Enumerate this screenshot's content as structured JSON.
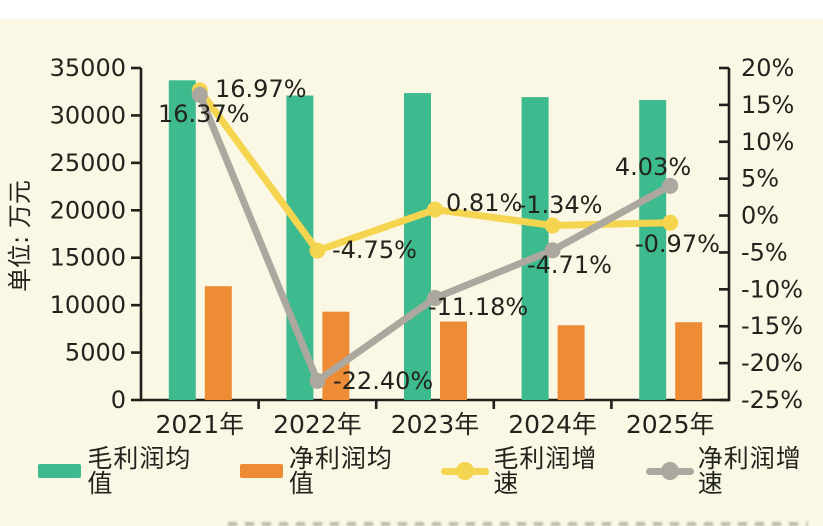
{
  "page": {
    "background_color": "#FAF8E4",
    "top_strip_color": "#FFFFFF",
    "text_color": "#23231E",
    "axis_color": "#1F1F1B"
  },
  "chart_data": {
    "type": "bar",
    "subtype": "combo-bar-line-dual-axis",
    "categories": [
      "2021年",
      "2022年",
      "2023年",
      "2024年",
      "2025年"
    ],
    "left_axis": {
      "title": "单位: 万元",
      "min": 0,
      "max": 35000,
      "tick_values": [
        35000,
        30000,
        25000,
        20000,
        15000,
        10000,
        5000,
        0
      ],
      "tick_labels": [
        "35000",
        "30000",
        "25000",
        "20000",
        "15000",
        "10000",
        "5000",
        "0"
      ]
    },
    "right_axis": {
      "min": -25,
      "max": 20,
      "tick_values": [
        20,
        15,
        10,
        5,
        0,
        -5,
        -10,
        -15,
        -20,
        -25
      ],
      "tick_labels": [
        "20%",
        "15%",
        "10%",
        "5%",
        "0%",
        "-5%",
        "-10%",
        "-15%",
        "-20%",
        "-25%"
      ]
    },
    "grid": false,
    "legend_position": "bottom",
    "series": [
      {
        "name": "毛利润均值",
        "type": "bar",
        "axis": "left",
        "color": "#3DBA8E",
        "values": [
          33700,
          32100,
          32360,
          31930,
          31620
        ]
      },
      {
        "name": "净利润均值",
        "type": "bar",
        "axis": "left",
        "color": "#EE8B35",
        "values": [
          12000,
          9310,
          8270,
          7880,
          8200
        ]
      },
      {
        "name": "毛利润增速",
        "type": "line",
        "axis": "right",
        "color": "#F5D44F",
        "values": [
          16.97,
          -4.75,
          0.81,
          -1.34,
          -0.97
        ],
        "point_labels": [
          "16.97%",
          "-4.75%",
          "0.81%",
          "-1.34%",
          "-0.97%"
        ]
      },
      {
        "name": "净利润增速",
        "type": "line",
        "axis": "right",
        "color": "#ACA79F",
        "values": [
          16.37,
          -22.4,
          -11.18,
          -4.71,
          4.03
        ],
        "point_labels": [
          "16.37%",
          "-22.40%",
          "-11.18%",
          "-4.71%",
          "4.03%"
        ]
      }
    ]
  }
}
